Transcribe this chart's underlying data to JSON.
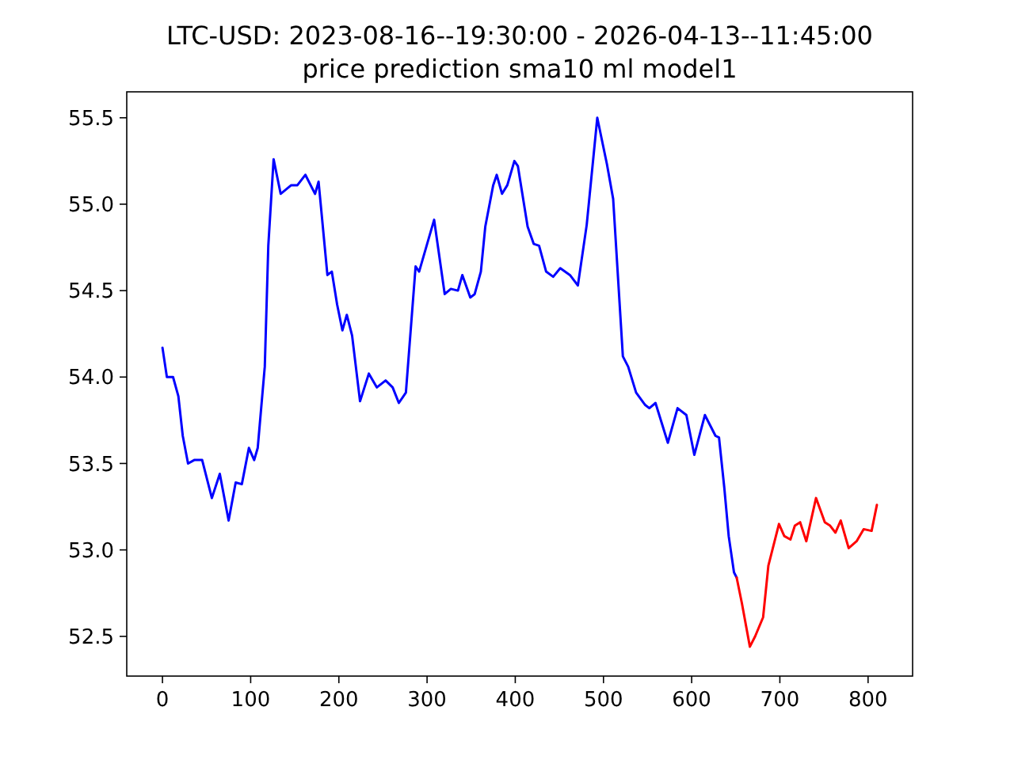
{
  "chart_data": {
    "type": "line",
    "title": "LTC-USD: 2023-08-16--19:30:00 - 2026-04-13--11:45:00",
    "subtitle": "price prediction sma10 ml model1",
    "xlim": [
      -40.5,
      850.5
    ],
    "xticks": [
      0,
      100,
      200,
      300,
      400,
      500,
      600,
      700,
      800
    ],
    "ylim": [
      52.27,
      55.65
    ],
    "yticks": [
      52.5,
      {
        "value": 53,
        "label": "53.0"
      },
      53.5,
      {
        "value": 54,
        "label": "54.0"
      },
      54.5,
      {
        "value": 55,
        "label": "55.0"
      },
      55.5
    ],
    "grid": false,
    "marker": "none",
    "line_style": "solid",
    "series": [
      {
        "color": "#0000ff",
        "x": [
          0,
          5,
          12,
          18,
          23,
          29,
          36,
          45,
          56,
          65,
          75,
          83,
          90,
          98,
          104,
          108,
          116,
          120,
          126,
          134,
          146,
          153,
          162,
          173,
          177,
          187,
          192,
          198,
          204,
          209,
          215,
          224,
          234,
          243,
          253,
          261,
          268,
          276,
          287,
          291,
          308,
          320,
          327,
          335,
          340,
          349,
          354,
          361,
          366,
          375,
          379,
          385,
          391,
          399,
          403,
          414,
          421,
          427,
          435,
          443,
          451,
          462,
          471,
          481,
          493,
          504,
          511,
          522,
          528,
          537,
          547,
          552,
          559,
          573,
          584,
          594,
          603,
          615,
          627,
          631,
          637,
          642,
          648,
          651
        ],
        "values": [
          54.17,
          54.0,
          54.0,
          53.89,
          53.66,
          53.5,
          53.52,
          53.52,
          53.3,
          53.44,
          53.17,
          53.39,
          53.38,
          53.59,
          53.52,
          53.59,
          54.06,
          54.76,
          55.26,
          55.06,
          55.11,
          55.11,
          55.17,
          55.06,
          55.13,
          54.59,
          54.61,
          54.42,
          54.27,
          54.36,
          54.24,
          53.86,
          54.02,
          53.94,
          53.98,
          53.94,
          53.85,
          53.91,
          54.64,
          54.61,
          54.91,
          54.48,
          54.51,
          54.5,
          54.59,
          54.46,
          54.48,
          54.61,
          54.87,
          55.11,
          55.17,
          55.06,
          55.11,
          55.25,
          55.22,
          54.87,
          54.77,
          54.76,
          54.61,
          54.58,
          54.63,
          54.59,
          54.53,
          54.88,
          55.5,
          55.23,
          55.03,
          54.12,
          54.06,
          53.91,
          53.84,
          53.82,
          53.85,
          53.62,
          53.82,
          53.78,
          53.55,
          53.78,
          53.66,
          53.65,
          53.36,
          53.08,
          52.87,
          52.84
        ]
      },
      {
        "color": "#ff0000",
        "x": [
          651,
          657,
          666,
          672,
          681,
          687,
          699,
          705,
          712,
          717,
          723,
          730,
          741,
          751,
          757,
          763,
          769,
          778,
          787,
          795,
          804,
          810
        ],
        "values": [
          52.84,
          52.69,
          52.44,
          52.5,
          52.61,
          52.91,
          53.15,
          53.08,
          53.06,
          53.14,
          53.16,
          53.05,
          53.3,
          53.16,
          53.14,
          53.1,
          53.17,
          53.01,
          53.05,
          53.12,
          53.11,
          53.26
        ]
      }
    ]
  }
}
